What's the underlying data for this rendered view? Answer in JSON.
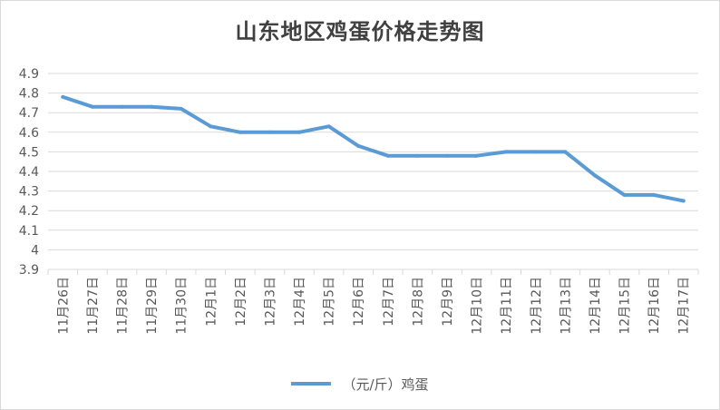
{
  "chart_data": {
    "type": "line",
    "title": "山东地区鸡蛋价格走势图",
    "categories": [
      "11月26日",
      "11月27日",
      "11月28日",
      "11月29日",
      "11月30日",
      "12月1日",
      "12月2日",
      "12月3日",
      "12月4日",
      "12月5日",
      "12月6日",
      "12月7日",
      "12月8日",
      "12月9日",
      "12月10日",
      "12月11日",
      "12月12日",
      "12月13日",
      "12月14日",
      "12月15日",
      "12月16日",
      "12月17日"
    ],
    "series": [
      {
        "name": "（元/斤）鸡蛋",
        "color": "#5b9bd5",
        "values": [
          4.78,
          4.73,
          4.73,
          4.73,
          4.72,
          4.63,
          4.6,
          4.6,
          4.6,
          4.63,
          4.53,
          4.48,
          4.48,
          4.48,
          4.48,
          4.5,
          4.5,
          4.5,
          4.38,
          4.28,
          4.28,
          4.25
        ]
      }
    ],
    "ylim": [
      3.9,
      4.9
    ],
    "yticks": [
      "4.9",
      "4.8",
      "4.7",
      "4.6",
      "4.5",
      "4.4",
      "4.3",
      "4.2",
      "4.1",
      "4",
      "3.9"
    ],
    "grid": true,
    "legend": "bottom"
  }
}
